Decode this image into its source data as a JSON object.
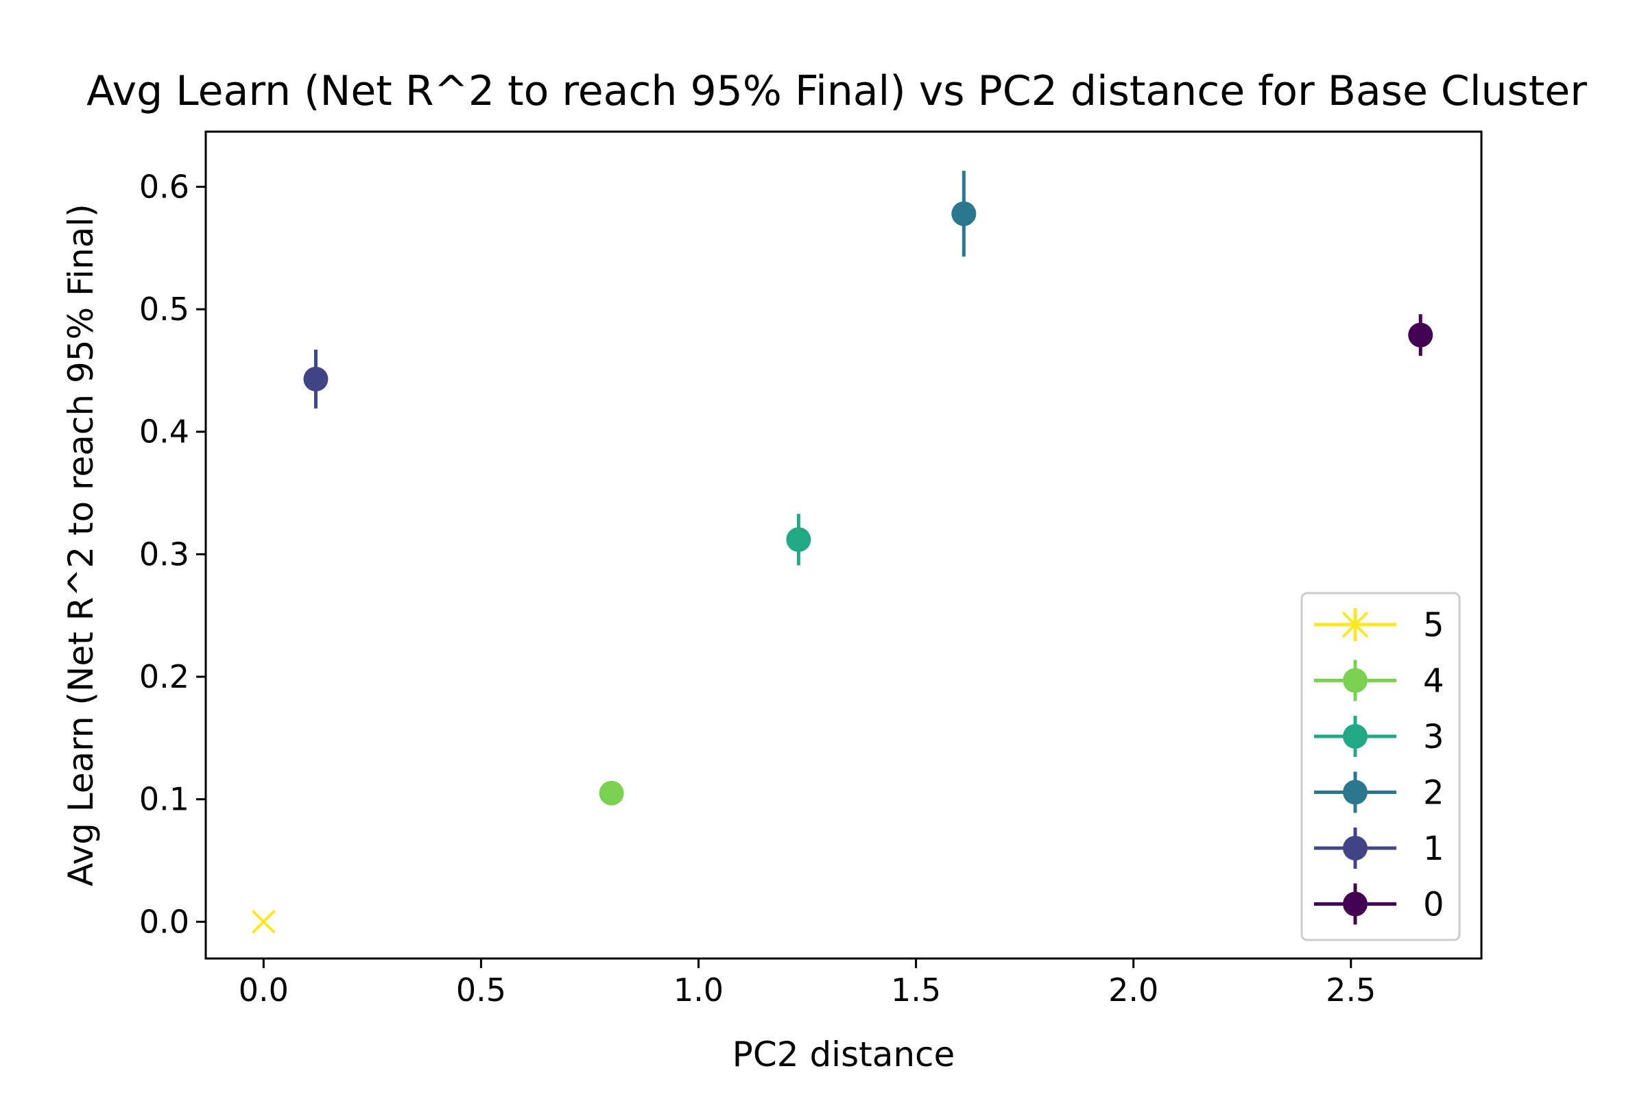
{
  "chart_data": {
    "type": "scatter",
    "title": "Avg Learn (Net R^2 to reach 95% Final) vs PC2 distance for Base Cluster",
    "xlabel": "PC2 distance",
    "ylabel": "Avg Learn (Net R^2 to reach 95% Final)",
    "xlim": [
      -0.133,
      2.8
    ],
    "ylim": [
      -0.03,
      0.645
    ],
    "xticks": [
      0.0,
      0.5,
      1.0,
      1.5,
      2.0,
      2.5
    ],
    "xtick_labels": [
      "0.0",
      "0.5",
      "1.0",
      "1.5",
      "2.0",
      "2.5"
    ],
    "yticks": [
      0.0,
      0.1,
      0.2,
      0.3,
      0.4,
      0.5,
      0.6
    ],
    "ytick_labels": [
      "0.0",
      "0.1",
      "0.2",
      "0.3",
      "0.4",
      "0.5",
      "0.6"
    ],
    "grid": false,
    "legend_position": "lower right",
    "series": [
      {
        "name": "5",
        "x": 0.0,
        "y": 0.0,
        "err": 0.0,
        "marker": "x",
        "legend_marker": "star",
        "color": "#fde725"
      },
      {
        "name": "4",
        "x": 0.8,
        "y": 0.105,
        "err": 0.0,
        "marker": "o",
        "color": "#7ad151"
      },
      {
        "name": "3",
        "x": 1.23,
        "y": 0.312,
        "err": 0.021,
        "marker": "o",
        "color": "#22a884"
      },
      {
        "name": "2",
        "x": 1.61,
        "y": 0.578,
        "err": 0.035,
        "marker": "o",
        "color": "#2a788e"
      },
      {
        "name": "1",
        "x": 0.12,
        "y": 0.443,
        "err": 0.024,
        "marker": "o",
        "color": "#414487"
      },
      {
        "name": "0",
        "x": 2.66,
        "y": 0.479,
        "err": 0.017,
        "marker": "o",
        "color": "#440154"
      }
    ]
  }
}
